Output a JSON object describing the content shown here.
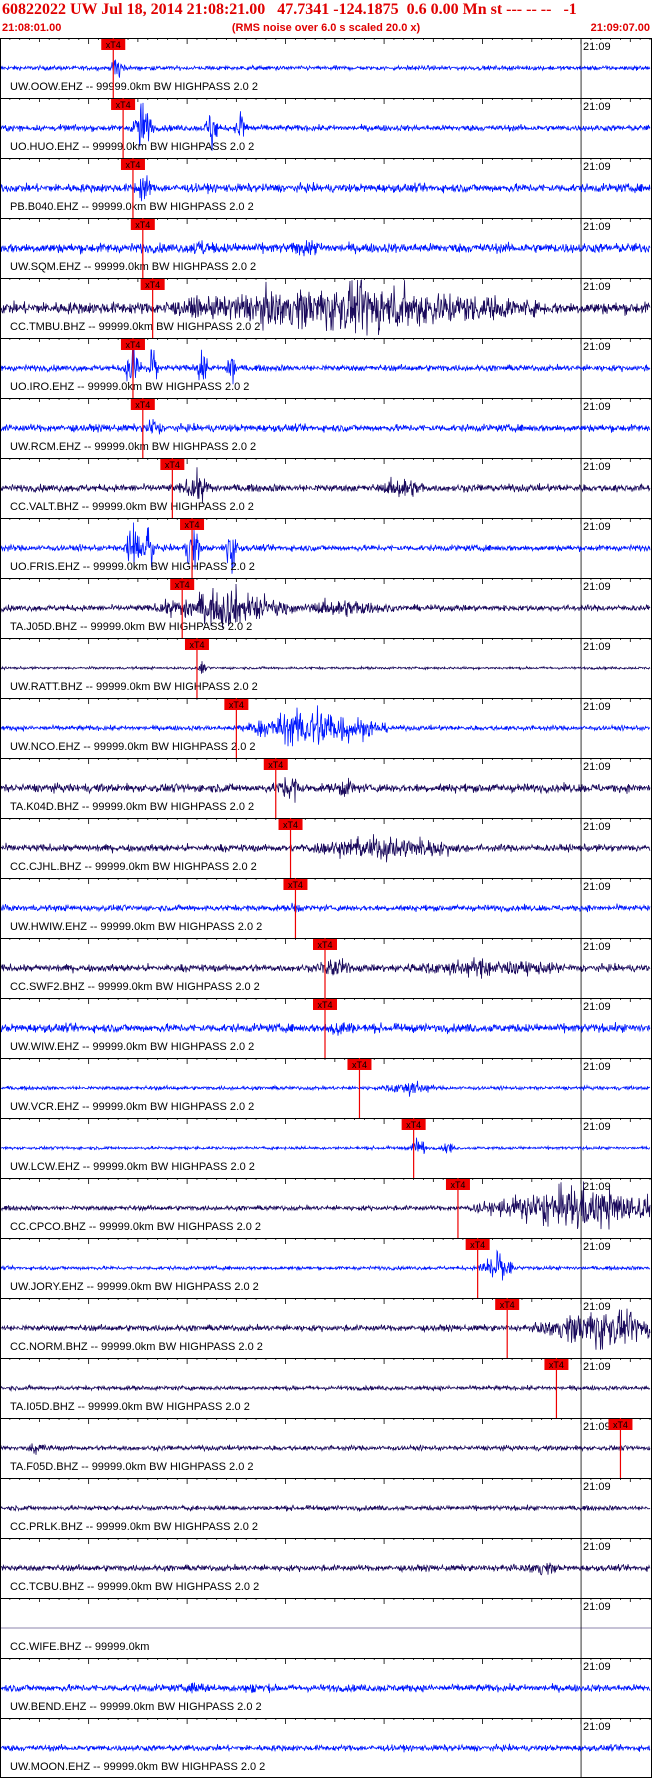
{
  "header": {
    "title": "60822022 UW Jul 18, 2014 21:08:21.00   47.7341 -124.1875  0.6 0.00 Mn st --- -- --   -1",
    "start_time": "21:08:01.00",
    "rms_note": "(RMS noise over 6.0 s scaled 20.0 x)",
    "end_time": "21:09:07.00"
  },
  "colors": {
    "title": "#e00000",
    "pick_box": "#ee0000",
    "pick_line": "#ee0000",
    "trace_blue": "#0018ff",
    "trace_navy": "#1a0a5c",
    "grid": "#000000"
  },
  "chart_data": {
    "type": "seismogram",
    "time_range": [
      "21:08:01.00",
      "21:09:07.00"
    ],
    "minute_mark_label": "21:09",
    "pick_label": "xT4",
    "traces": [
      {
        "label": "UW.OOW.EHZ -- 99999.0km BW  HIGHPASS  2.0  2",
        "color": "blue",
        "pick_time": "21:08:12.5",
        "event_windows": [
          {
            "center": "21:08:13.0",
            "duration_s": 1.5,
            "amp": 1.6
          }
        ],
        "base_amp": 0.18
      },
      {
        "label": "UO.HUO.EHZ -- 99999.0km BW  HIGHPASS  2.0  2",
        "color": "blue",
        "pick_time": "21:08:13.5",
        "event_windows": [
          {
            "center": "21:08:15.5",
            "duration_s": 2.5,
            "amp": 2.6
          },
          {
            "center": "21:08:22.5",
            "duration_s": 1.5,
            "amp": 2.4
          },
          {
            "center": "21:08:25.5",
            "duration_s": 1.5,
            "amp": 2.6
          }
        ],
        "base_amp": 0.25
      },
      {
        "label": "PB.B040.EHZ -- 99999.0km BW  HIGHPASS  2.0  2",
        "color": "blue",
        "pick_time": "21:08:14.5",
        "event_windows": [
          {
            "center": "21:08:15.5",
            "duration_s": 2.0,
            "amp": 1.3
          }
        ],
        "base_amp": 0.35
      },
      {
        "label": "UW.SQM.EHZ -- 99999.0km BW  HIGHPASS  2.0  2",
        "color": "blue",
        "pick_time": "21:08:15.5",
        "event_windows": [
          {
            "center": "21:08:21.5",
            "duration_s": 3.0,
            "amp": 0.55
          },
          {
            "center": "21:08:32.0",
            "duration_s": 3.0,
            "amp": 0.7
          }
        ],
        "base_amp": 0.4
      },
      {
        "label": "CC.TMBU.BHZ -- 99999.0km BW  HIGHPASS  2.0  2",
        "color": "navy",
        "pick_time": "21:08:16.5",
        "event_windows": [
          {
            "center": "21:08:37.0",
            "duration_s": 40.0,
            "amp": 2.0
          }
        ],
        "base_amp": 0.5
      },
      {
        "label": "UO.IRO.EHZ -- 99999.0km BW  HIGHPASS  2.0  2",
        "color": "blue",
        "pick_time": "21:08:14.5",
        "event_windows": [
          {
            "center": "21:08:14.5",
            "duration_s": 2.0,
            "amp": 2.4
          },
          {
            "center": "21:08:16.5",
            "duration_s": 1.5,
            "amp": 2.4
          },
          {
            "center": "21:08:21.5",
            "duration_s": 1.5,
            "amp": 2.4
          },
          {
            "center": "21:08:24.5",
            "duration_s": 1.5,
            "amp": 2.4
          }
        ],
        "base_amp": 0.25
      },
      {
        "label": "UW.RCM.EHZ -- 99999.0km BW  HIGHPASS  2.0  2",
        "color": "blue",
        "pick_time": "21:08:15.5",
        "event_windows": [
          {
            "center": "21:08:16.5",
            "duration_s": 2.0,
            "amp": 0.9
          }
        ],
        "base_amp": 0.3
      },
      {
        "label": "CC.VALT.BHZ -- 99999.0km BW  HIGHPASS  2.0  2",
        "color": "navy",
        "pick_time": "21:08:18.5",
        "event_windows": [
          {
            "center": "21:08:21.0",
            "duration_s": 4.0,
            "amp": 1.2
          },
          {
            "center": "21:08:42.0",
            "duration_s": 5.0,
            "amp": 0.9
          }
        ],
        "base_amp": 0.3
      },
      {
        "label": "UO.FRIS.EHZ -- 99999.0km BW  HIGHPASS  2.0  2",
        "color": "blue",
        "pick_time": "21:08:20.5",
        "event_windows": [
          {
            "center": "21:08:14.5",
            "duration_s": 2.0,
            "amp": 2.6
          },
          {
            "center": "21:08:16.0",
            "duration_s": 1.5,
            "amp": 2.6
          },
          {
            "center": "21:08:20.5",
            "duration_s": 2.0,
            "amp": 2.6
          },
          {
            "center": "21:08:24.5",
            "duration_s": 1.5,
            "amp": 2.6
          }
        ],
        "base_amp": 0.25
      },
      {
        "label": "TA.J05D.BHZ -- 99999.0km BW  HIGHPASS  2.0  2",
        "color": "navy",
        "pick_time": "21:08:19.5",
        "event_windows": [
          {
            "center": "21:08:24.0",
            "duration_s": 16.0,
            "amp": 1.8
          },
          {
            "center": "21:08:36.0",
            "duration_s": 10.0,
            "amp": 0.7
          }
        ],
        "base_amp": 0.25
      },
      {
        "label": "UW.RATT.BHZ -- 99999.0km BW  HIGHPASS  2.0  2",
        "color": "navy",
        "pick_time": "21:08:21.0",
        "event_windows": [
          {
            "center": "21:08:21.5",
            "duration_s": 1.0,
            "amp": 0.8
          }
        ],
        "base_amp": 0.1
      },
      {
        "label": "UW.NCO.EHZ -- 99999.0km BW  HIGHPASS  2.0  2",
        "color": "blue",
        "pick_time": "21:08:25.0",
        "event_windows": [
          {
            "center": "21:08:33.0",
            "duration_s": 16.0,
            "amp": 2.2
          }
        ],
        "base_amp": 0.2
      },
      {
        "label": "TA.K04D.BHZ -- 99999.0km BW  HIGHPASS  2.0  2",
        "color": "navy",
        "pick_time": "21:08:29.0",
        "event_windows": [
          {
            "center": "21:08:30.5",
            "duration_s": 3.0,
            "amp": 1.2
          },
          {
            "center": "21:08:36.0",
            "duration_s": 3.0,
            "amp": 0.7
          }
        ],
        "base_amp": 0.35
      },
      {
        "label": "CC.CJHL.BHZ -- 99999.0km BW  HIGHPASS  2.0  2",
        "color": "navy",
        "pick_time": "21:08:30.5",
        "event_windows": [
          {
            "center": "21:08:40.0",
            "duration_s": 18.0,
            "amp": 1.0
          }
        ],
        "base_amp": 0.3
      },
      {
        "label": "UW.HWIW.EHZ -- 99999.0km BW  HIGHPASS  2.0  2",
        "color": "blue",
        "pick_time": "21:08:31.0",
        "event_windows": [
          {
            "center": "21:08:31.0",
            "duration_s": 1.0,
            "amp": 0.7
          }
        ],
        "base_amp": 0.25
      },
      {
        "label": "CC.SWF2.BHZ -- 99999.0km BW  HIGHPASS  2.0  2",
        "color": "navy",
        "pick_time": "21:08:34.0",
        "event_windows": [
          {
            "center": "21:08:35.0",
            "duration_s": 4.0,
            "amp": 0.8
          },
          {
            "center": "21:08:50.0",
            "duration_s": 20.0,
            "amp": 0.6
          }
        ],
        "base_amp": 0.3
      },
      {
        "label": "UW.WIW.EHZ -- 99999.0km BW  HIGHPASS  2.0  2",
        "color": "blue",
        "pick_time": "21:08:34.0",
        "event_windows": [
          {
            "center": "21:08:35.5",
            "duration_s": 3.0,
            "amp": 0.6
          }
        ],
        "base_amp": 0.35
      },
      {
        "label": "UW.VCR.EHZ -- 99999.0km BW  HIGHPASS  2.0  2",
        "color": "blue",
        "pick_time": "21:08:37.5",
        "event_windows": [
          {
            "center": "21:08:42.5",
            "duration_s": 6.0,
            "amp": 0.7
          }
        ],
        "base_amp": 0.15
      },
      {
        "label": "UW.LCW.EHZ -- 99999.0km BW  HIGHPASS  2.0  2",
        "color": "blue",
        "pick_time": "21:08:43.0",
        "event_windows": [
          {
            "center": "21:08:43.5",
            "duration_s": 2.0,
            "amp": 1.1
          },
          {
            "center": "21:08:46.5",
            "duration_s": 1.5,
            "amp": 0.6
          }
        ],
        "base_amp": 0.12
      },
      {
        "label": "CC.CPCO.BHZ -- 99999.0km BW  HIGHPASS  2.0  2",
        "color": "navy",
        "pick_time": "21:08:47.5",
        "event_windows": [
          {
            "center": "21:09:00.0",
            "duration_s": 24.0,
            "amp": 2.2
          }
        ],
        "base_amp": 0.2
      },
      {
        "label": "UW.JORY.EHZ -- 99999.0km BW  HIGHPASS  2.0  2",
        "color": "blue",
        "pick_time": "21:08:49.5",
        "event_windows": [
          {
            "center": "21:08:51.5",
            "duration_s": 4.0,
            "amp": 1.9
          }
        ],
        "base_amp": 0.15
      },
      {
        "label": "CC.NORM.BHZ -- 99999.0km BW  HIGHPASS  2.0  2",
        "color": "navy",
        "pick_time": "21:08:52.5",
        "event_windows": [
          {
            "center": "21:09:02.0",
            "duration_s": 14.0,
            "amp": 2.0
          }
        ],
        "base_amp": 0.25
      },
      {
        "label": "TA.I05D.BHZ -- 99999.0km BW  HIGHPASS  2.0  2",
        "color": "navy",
        "pick_time": "21:08:57.5",
        "event_windows": [],
        "base_amp": 0.18
      },
      {
        "label": "TA.F05D.BHZ -- 99999.0km BW  HIGHPASS  2.0  2",
        "color": "navy",
        "pick_time": "21:09:04.0",
        "event_windows": [
          {
            "center": "21:08:05.0",
            "duration_s": 3.0,
            "amp": 0.4
          }
        ],
        "base_amp": 0.2
      },
      {
        "label": "CC.PRLK.BHZ -- 99999.0km BW  HIGHPASS  2.0  2",
        "color": "navy",
        "pick_time": null,
        "event_windows": [],
        "base_amp": 0.2
      },
      {
        "label": "CC.TCBU.BHZ -- 99999.0km BW  HIGHPASS  2.0  2",
        "color": "navy",
        "pick_time": null,
        "event_windows": [
          {
            "center": "21:08:56.0",
            "duration_s": 4.0,
            "amp": 0.5
          }
        ],
        "base_amp": 0.25
      },
      {
        "label": "CC.WIFE.BHZ -- 99999.0km",
        "color": "navy",
        "pick_time": null,
        "event_windows": [],
        "base_amp": 0.0
      },
      {
        "label": "UW.BEND.EHZ -- 99999.0km BW  HIGHPASS  2.0  2",
        "color": "blue",
        "pick_time": null,
        "event_windows": [
          {
            "center": "21:08:21.0",
            "duration_s": 3.0,
            "amp": 0.4
          },
          {
            "center": "21:08:27.0",
            "duration_s": 3.0,
            "amp": 0.4
          }
        ],
        "base_amp": 0.3
      },
      {
        "label": "UW.MOON.EHZ -- 99999.0km BW  HIGHPASS  2.0  2",
        "color": "blue",
        "pick_time": null,
        "event_windows": [],
        "base_amp": 0.25
      }
    ]
  }
}
